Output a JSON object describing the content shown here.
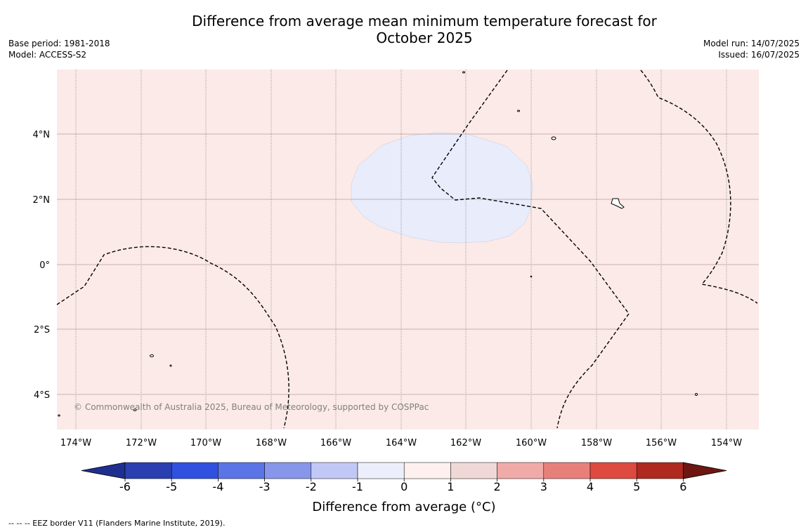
{
  "title": {
    "line1": "Difference from average mean minimum temperature forecast for",
    "line2": "October 2025"
  },
  "meta_left": {
    "base_period": "Base period: 1981-2018",
    "model": "Model: ACCESS-S2"
  },
  "meta_right": {
    "model_run": "Model run: 14/07/2025",
    "issued": "Issued: 16/07/2025"
  },
  "map": {
    "copyright": "© Commonwealth of Australia 2025, Bureau of Meteorology, supported by COSPPac",
    "lon_labels": [
      "174°W",
      "172°W",
      "170°W",
      "168°W",
      "166°W",
      "164°W",
      "162°W",
      "160°W",
      "158°W",
      "156°W",
      "154°W"
    ],
    "lat_labels": [
      "4°N",
      "2°N",
      "0°",
      "2°S",
      "4°S"
    ],
    "background_color": "#fbeae8",
    "anomaly_color": "#e8ecfb"
  },
  "colorbar": {
    "title": "Difference from average (°C)",
    "ticks": [
      "-6",
      "-5",
      "-4",
      "-3",
      "-2",
      "-1",
      "0",
      "1",
      "2",
      "3",
      "4",
      "5",
      "6"
    ],
    "colors": [
      "#1e2f8f",
      "#2a3fb0",
      "#3050e0",
      "#5b74e6",
      "#8796ea",
      "#c2c8f5",
      "#eceffb",
      "#fdf0ee",
      "#f0d8d6",
      "#f0aba8",
      "#e8807a",
      "#de4a40",
      "#b0291f",
      "#6e1612"
    ]
  },
  "footnote": "--  --  -- EEZ border V11 (Flanders Marine Institute, 2019)."
}
